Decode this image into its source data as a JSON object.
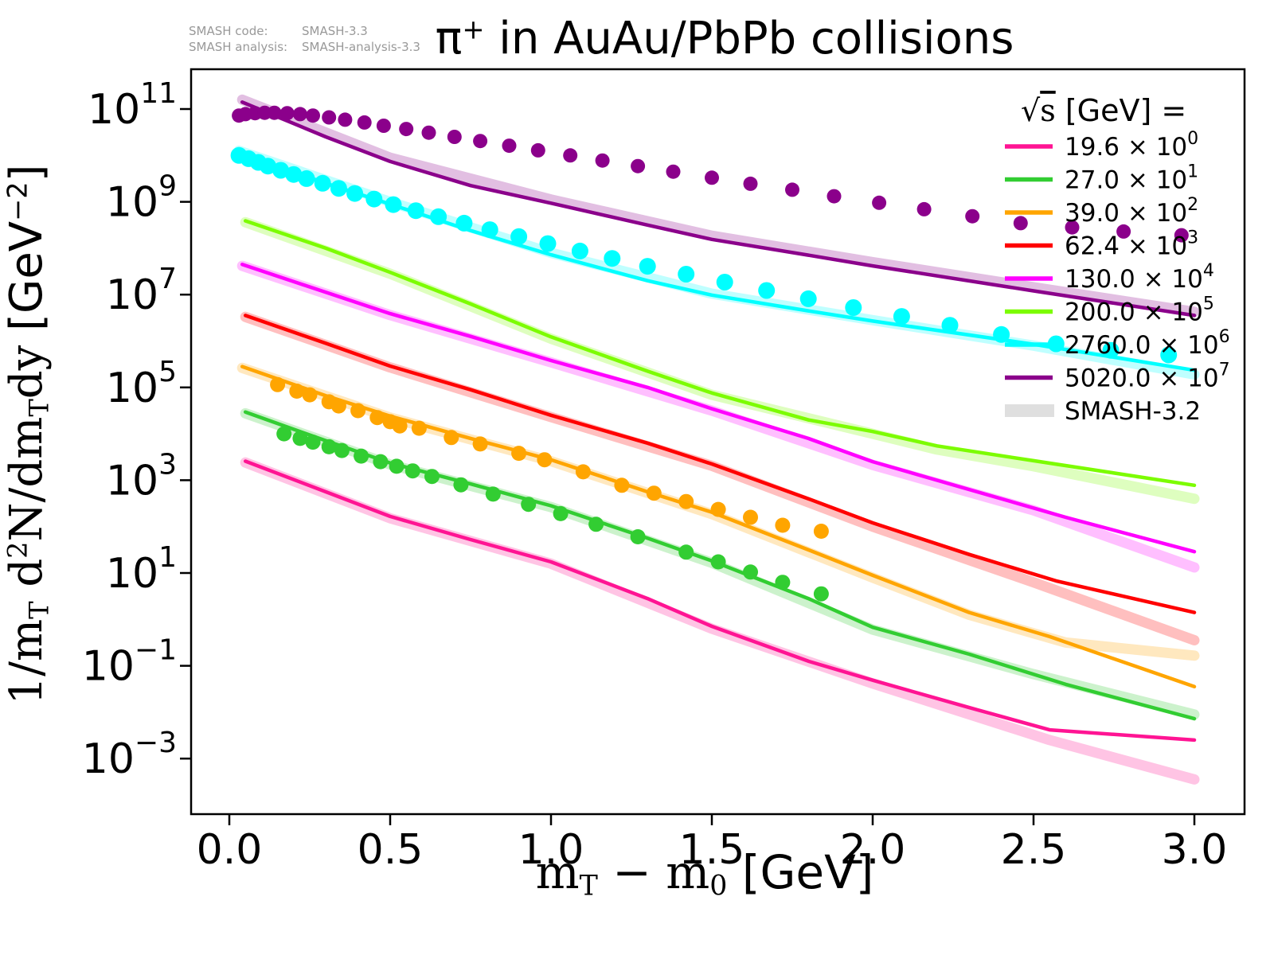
{
  "annotations": {
    "code_label": "SMASH code:",
    "code_value": "SMASH-3.3",
    "analysis_label": "SMASH analysis:",
    "analysis_value": "SMASH-analysis-3.3"
  },
  "title_plain": "π⁺ in AuAu/PbPb collisions",
  "title_rich": [
    {
      "t": "π",
      "f": "sans"
    },
    {
      "t": "+",
      "f": "sans-sup"
    },
    {
      "t": " in AuAu/PbPb collisions",
      "f": "sans"
    }
  ],
  "chart_data": {
    "type": "line",
    "title": "π+ in AuAu/PbPb collisions",
    "xlabel": "m_T − m_0 [GeV]",
    "ylabel": "1/m_T d²N/dm_T dy [GeV⁻²]",
    "xlabel_rich": [
      {
        "t": "m",
        "f": "serif"
      },
      {
        "t": "T",
        "f": "serif-sub"
      },
      {
        "t": " − m",
        "f": "serif"
      },
      {
        "t": "0",
        "f": "serif-sub"
      },
      {
        "t": " [GeV]",
        "f": "sans"
      }
    ],
    "ylabel_rich": [
      {
        "t": "1/m",
        "f": "serif"
      },
      {
        "t": "T",
        "f": "serif-sub"
      },
      {
        "t": " d",
        "f": "serif"
      },
      {
        "t": "2",
        "f": "serif-sup"
      },
      {
        "t": "N/dm",
        "f": "serif"
      },
      {
        "t": "T",
        "f": "serif-sub"
      },
      {
        "t": "dy ",
        "f": "serif"
      },
      {
        "t": " [GeV",
        "f": "sans"
      },
      {
        "t": "−2",
        "f": "sans-sup"
      },
      {
        "t": "]",
        "f": "sans"
      }
    ],
    "grid": false,
    "ylog": true,
    "xlim": [
      -0.12,
      3.16
    ],
    "ylim_log10": [
      -4.2,
      11.86
    ],
    "xticks": [
      "0.0",
      "0.5",
      "1.0",
      "1.5",
      "2.0",
      "2.5",
      "3.0"
    ],
    "xtick_values": [
      0.0,
      0.5,
      1.0,
      1.5,
      2.0,
      2.5,
      3.0
    ],
    "ytick_exponents": [
      11,
      9,
      7,
      5,
      3,
      1,
      -1,
      -3
    ],
    "legend_position": "upper right",
    "legend_title_plain": "√s  [GeV] =",
    "legend_title_rich": [
      {
        "t": "√",
        "f": "serif"
      },
      {
        "t": "s",
        "f": "serif-over"
      },
      {
        "t": "  [GeV] =",
        "f": "sans"
      }
    ],
    "smash32_label": "SMASH-3.2",
    "smash32_color": "#dcdcdc",
    "series": [
      {
        "sqrts": "19.6",
        "exp": 0,
        "label": "19.6 × 10⁰",
        "color": "#ff1493",
        "marker_r": 9,
        "line": [
          [
            0.05,
            3.41
          ],
          [
            0.3,
            2.75
          ],
          [
            0.5,
            2.22
          ],
          [
            0.75,
            1.72
          ],
          [
            1.0,
            1.24
          ],
          [
            1.3,
            0.45
          ],
          [
            1.5,
            -0.15
          ],
          [
            1.8,
            -0.9
          ],
          [
            2.0,
            -1.31
          ],
          [
            2.3,
            -1.9
          ],
          [
            2.55,
            -2.38
          ],
          [
            3.0,
            -2.6
          ]
        ],
        "band": [
          [
            0.05,
            3.38
          ],
          [
            0.5,
            2.18
          ],
          [
            1.0,
            1.2
          ],
          [
            1.5,
            -0.2
          ],
          [
            2.0,
            -1.38
          ],
          [
            2.55,
            -2.6
          ],
          [
            3.0,
            -3.45
          ]
        ],
        "markers": []
      },
      {
        "sqrts": "27.0",
        "exp": 1,
        "label": "27.0 × 10¹",
        "color": "#32cd32",
        "marker_r": 9.5,
        "line": [
          [
            0.05,
            4.47
          ],
          [
            0.3,
            3.85
          ],
          [
            0.5,
            3.37
          ],
          [
            0.75,
            2.92
          ],
          [
            1.0,
            2.45
          ],
          [
            1.3,
            1.75
          ],
          [
            1.5,
            1.26
          ],
          [
            1.8,
            0.45
          ],
          [
            2.0,
            -0.17
          ],
          [
            2.3,
            -0.75
          ],
          [
            2.6,
            -1.4
          ],
          [
            3.0,
            -2.14
          ]
        ],
        "band": [
          [
            0.05,
            4.44
          ],
          [
            0.5,
            3.34
          ],
          [
            1.0,
            2.42
          ],
          [
            1.5,
            1.22
          ],
          [
            2.0,
            -0.22
          ],
          [
            2.5,
            -1.18
          ],
          [
            3.0,
            -2.05
          ]
        ],
        "markers": [
          [
            0.17,
            4.0
          ],
          [
            0.22,
            3.9
          ],
          [
            0.26,
            3.82
          ],
          [
            0.31,
            3.72
          ],
          [
            0.35,
            3.64
          ],
          [
            0.41,
            3.52
          ],
          [
            0.47,
            3.4
          ],
          [
            0.52,
            3.3
          ],
          [
            0.57,
            3.2
          ],
          [
            0.63,
            3.08
          ],
          [
            0.72,
            2.9
          ],
          [
            0.82,
            2.7
          ],
          [
            0.93,
            2.48
          ],
          [
            1.03,
            2.28
          ],
          [
            1.14,
            2.05
          ],
          [
            1.27,
            1.78
          ],
          [
            1.42,
            1.45
          ],
          [
            1.52,
            1.24
          ],
          [
            1.62,
            1.02
          ],
          [
            1.72,
            0.8
          ],
          [
            1.84,
            0.55
          ]
        ]
      },
      {
        "sqrts": "39.0",
        "exp": 2,
        "label": "39.0 × 10²",
        "color": "#ffa500",
        "marker_r": 9.5,
        "line": [
          [
            0.04,
            5.45
          ],
          [
            0.3,
            4.82
          ],
          [
            0.5,
            4.38
          ],
          [
            0.75,
            3.9
          ],
          [
            1.0,
            3.44
          ],
          [
            1.3,
            2.75
          ],
          [
            1.5,
            2.31
          ],
          [
            1.8,
            1.5
          ],
          [
            2.0,
            0.95
          ],
          [
            2.3,
            0.15
          ],
          [
            2.55,
            -0.37
          ],
          [
            3.0,
            -1.45
          ]
        ],
        "band": [
          [
            0.04,
            5.42
          ],
          [
            0.5,
            4.35
          ],
          [
            1.0,
            3.41
          ],
          [
            1.5,
            2.27
          ],
          [
            2.0,
            0.9
          ],
          [
            2.3,
            0.1
          ],
          [
            2.6,
            -0.5
          ],
          [
            3.0,
            -0.78
          ]
        ],
        "markers": [
          [
            0.15,
            5.06
          ],
          [
            0.21,
            4.92
          ],
          [
            0.25,
            4.84
          ],
          [
            0.31,
            4.69
          ],
          [
            0.34,
            4.6
          ],
          [
            0.4,
            4.5
          ],
          [
            0.46,
            4.35
          ],
          [
            0.5,
            4.26
          ],
          [
            0.53,
            4.17
          ],
          [
            0.59,
            4.12
          ],
          [
            0.69,
            3.92
          ],
          [
            0.78,
            3.78
          ],
          [
            0.9,
            3.58
          ],
          [
            0.98,
            3.44
          ],
          [
            1.1,
            3.18
          ],
          [
            1.22,
            2.89
          ],
          [
            1.32,
            2.72
          ],
          [
            1.42,
            2.54
          ],
          [
            1.52,
            2.37
          ],
          [
            1.62,
            2.2
          ],
          [
            1.72,
            2.03
          ],
          [
            1.84,
            1.9
          ]
        ]
      },
      {
        "sqrts": "62.4",
        "exp": 3,
        "label": "62.4 × 10³",
        "color": "#ff0000",
        "marker_r": 9,
        "line": [
          [
            0.05,
            6.55
          ],
          [
            0.3,
            5.95
          ],
          [
            0.5,
            5.46
          ],
          [
            0.75,
            4.95
          ],
          [
            1.0,
            4.4
          ],
          [
            1.3,
            3.8
          ],
          [
            1.5,
            3.35
          ],
          [
            1.8,
            2.6
          ],
          [
            2.0,
            2.08
          ],
          [
            2.3,
            1.4
          ],
          [
            2.57,
            0.83
          ],
          [
            3.0,
            0.15
          ]
        ],
        "band": [
          [
            0.05,
            6.52
          ],
          [
            0.5,
            5.43
          ],
          [
            1.0,
            4.36
          ],
          [
            1.5,
            3.31
          ],
          [
            2.0,
            2.0
          ],
          [
            2.5,
            0.8
          ],
          [
            3.0,
            -0.45
          ]
        ],
        "markers": []
      },
      {
        "sqrts": "130.0",
        "exp": 4,
        "label": "130.0 × 10⁴",
        "color": "#ff00ff",
        "marker_r": 9,
        "line": [
          [
            0.04,
            7.65
          ],
          [
            0.3,
            7.05
          ],
          [
            0.5,
            6.59
          ],
          [
            0.75,
            6.1
          ],
          [
            1.0,
            5.58
          ],
          [
            1.3,
            5.0
          ],
          [
            1.5,
            4.54
          ],
          [
            1.8,
            3.9
          ],
          [
            2.0,
            3.4
          ],
          [
            2.3,
            2.8
          ],
          [
            2.6,
            2.2
          ],
          [
            3.0,
            1.46
          ]
        ],
        "band": [
          [
            0.04,
            7.62
          ],
          [
            0.5,
            6.56
          ],
          [
            1.0,
            5.54
          ],
          [
            1.5,
            4.5
          ],
          [
            2.0,
            3.33
          ],
          [
            2.5,
            2.35
          ],
          [
            3.0,
            1.12
          ]
        ],
        "markers": []
      },
      {
        "sqrts": "200.0",
        "exp": 5,
        "label": "200.0 × 10⁵",
        "color": "#7cfc00",
        "marker_r": 9,
        "line": [
          [
            0.05,
            8.59
          ],
          [
            0.3,
            8.0
          ],
          [
            0.5,
            7.48
          ],
          [
            0.75,
            6.8
          ],
          [
            1.0,
            6.09
          ],
          [
            1.3,
            5.35
          ],
          [
            1.5,
            4.88
          ],
          [
            1.8,
            4.3
          ],
          [
            2.0,
            4.05
          ],
          [
            2.2,
            3.74
          ],
          [
            2.5,
            3.42
          ],
          [
            3.0,
            2.89
          ]
        ],
        "band": [
          [
            0.05,
            8.56
          ],
          [
            0.5,
            7.45
          ],
          [
            1.0,
            6.05
          ],
          [
            1.5,
            4.84
          ],
          [
            2.0,
            4.0
          ],
          [
            2.2,
            3.66
          ],
          [
            2.5,
            3.3
          ],
          [
            3.0,
            2.6
          ]
        ],
        "markers": []
      },
      {
        "sqrts": "2760.0",
        "exp": 6,
        "label": "2760.0 × 10⁶",
        "color": "#00ffff",
        "marker_r": 10.5,
        "line": [
          [
            0.03,
            10.06
          ],
          [
            0.3,
            9.4
          ],
          [
            0.5,
            8.95
          ],
          [
            0.75,
            8.38
          ],
          [
            1.0,
            7.86
          ],
          [
            1.3,
            7.3
          ],
          [
            1.5,
            6.99
          ],
          [
            1.8,
            6.65
          ],
          [
            2.0,
            6.43
          ],
          [
            2.5,
            5.93
          ],
          [
            3.0,
            5.37
          ]
        ],
        "band": [
          [
            0.03,
            10.1
          ],
          [
            0.5,
            9.0
          ],
          [
            1.0,
            7.9
          ],
          [
            1.5,
            7.02
          ],
          [
            2.0,
            6.45
          ],
          [
            2.5,
            5.9
          ],
          [
            3.0,
            5.28
          ]
        ],
        "markers": [
          [
            0.03,
            10.0
          ],
          [
            0.06,
            9.93
          ],
          [
            0.09,
            9.85
          ],
          [
            0.12,
            9.77
          ],
          [
            0.16,
            9.68
          ],
          [
            0.2,
            9.59
          ],
          [
            0.24,
            9.5
          ],
          [
            0.29,
            9.4
          ],
          [
            0.34,
            9.29
          ],
          [
            0.39,
            9.18
          ],
          [
            0.45,
            9.06
          ],
          [
            0.51,
            8.94
          ],
          [
            0.58,
            8.81
          ],
          [
            0.65,
            8.68
          ],
          [
            0.73,
            8.54
          ],
          [
            0.81,
            8.4
          ],
          [
            0.9,
            8.25
          ],
          [
            0.99,
            8.1
          ],
          [
            1.09,
            7.94
          ],
          [
            1.19,
            7.78
          ],
          [
            1.3,
            7.61
          ],
          [
            1.42,
            7.44
          ],
          [
            1.54,
            7.27
          ],
          [
            1.67,
            7.09
          ],
          [
            1.8,
            6.91
          ],
          [
            1.94,
            6.72
          ],
          [
            2.09,
            6.53
          ],
          [
            2.24,
            6.34
          ],
          [
            2.4,
            6.14
          ],
          [
            2.57,
            5.94
          ],
          [
            2.74,
            5.8
          ],
          [
            2.92,
            5.7
          ]
        ]
      },
      {
        "sqrts": "5020.0",
        "exp": 7,
        "label": "5020.0 × 10⁷",
        "color": "#8b008b",
        "marker_r": 9,
        "line": [
          [
            0.04,
            11.15
          ],
          [
            0.3,
            10.4
          ],
          [
            0.5,
            9.87
          ],
          [
            0.75,
            9.35
          ],
          [
            1.0,
            8.97
          ],
          [
            1.3,
            8.5
          ],
          [
            1.5,
            8.19
          ],
          [
            1.8,
            7.85
          ],
          [
            2.0,
            7.62
          ],
          [
            2.5,
            7.08
          ],
          [
            3.0,
            6.55
          ]
        ],
        "band": [
          [
            0.04,
            11.2
          ],
          [
            0.5,
            9.95
          ],
          [
            1.0,
            9.05
          ],
          [
            1.5,
            8.27
          ],
          [
            2.0,
            7.7
          ],
          [
            2.5,
            7.16
          ],
          [
            3.0,
            6.63
          ]
        ],
        "markers": [
          [
            0.03,
            10.86
          ],
          [
            0.05,
            10.89
          ],
          [
            0.08,
            10.91
          ],
          [
            0.11,
            10.92
          ],
          [
            0.14,
            10.92
          ],
          [
            0.18,
            10.91
          ],
          [
            0.22,
            10.89
          ],
          [
            0.26,
            10.86
          ],
          [
            0.31,
            10.82
          ],
          [
            0.36,
            10.77
          ],
          [
            0.42,
            10.71
          ],
          [
            0.48,
            10.64
          ],
          [
            0.55,
            10.57
          ],
          [
            0.62,
            10.49
          ],
          [
            0.7,
            10.4
          ],
          [
            0.78,
            10.31
          ],
          [
            0.87,
            10.21
          ],
          [
            0.96,
            10.11
          ],
          [
            1.06,
            10.0
          ],
          [
            1.16,
            9.89
          ],
          [
            1.27,
            9.77
          ],
          [
            1.38,
            9.65
          ],
          [
            1.5,
            9.52
          ],
          [
            1.62,
            9.39
          ],
          [
            1.75,
            9.26
          ],
          [
            1.88,
            9.12
          ],
          [
            2.02,
            8.98
          ],
          [
            2.16,
            8.84
          ],
          [
            2.31,
            8.69
          ],
          [
            2.46,
            8.54
          ],
          [
            2.62,
            8.45
          ],
          [
            2.78,
            8.36
          ],
          [
            2.96,
            8.28
          ]
        ]
      }
    ]
  }
}
